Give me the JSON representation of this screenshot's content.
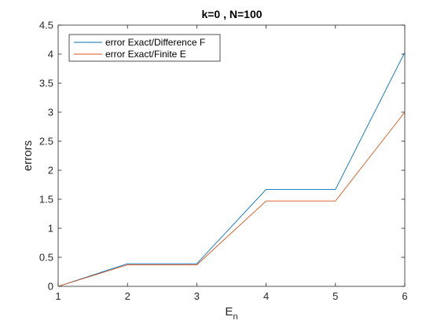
{
  "chart_data": {
    "type": "line",
    "title": "k=0 , N=100",
    "xlabel": "E",
    "xlabel_subscript": "n",
    "ylabel": "errors",
    "xlim": [
      1,
      6
    ],
    "ylim": [
      0,
      4.5
    ],
    "xticks": [
      "1",
      "2",
      "3",
      "4",
      "5",
      "6"
    ],
    "yticks": [
      "0",
      "0.5",
      "1",
      "1.5",
      "2",
      "2.5",
      "3",
      "3.5",
      "4",
      "4.5"
    ],
    "grid": false,
    "legend_position": "top-left",
    "x": [
      1,
      2,
      3,
      4,
      5,
      6
    ],
    "series": [
      {
        "name": "error Exact/Difference F",
        "color": "#0072BD",
        "values": [
          0,
          0.39,
          0.39,
          1.67,
          1.67,
          4.03
        ]
      },
      {
        "name": "error Exact/Finite E",
        "color": "#D95319",
        "values": [
          0,
          0.37,
          0.37,
          1.47,
          1.47,
          3.0
        ]
      }
    ]
  }
}
